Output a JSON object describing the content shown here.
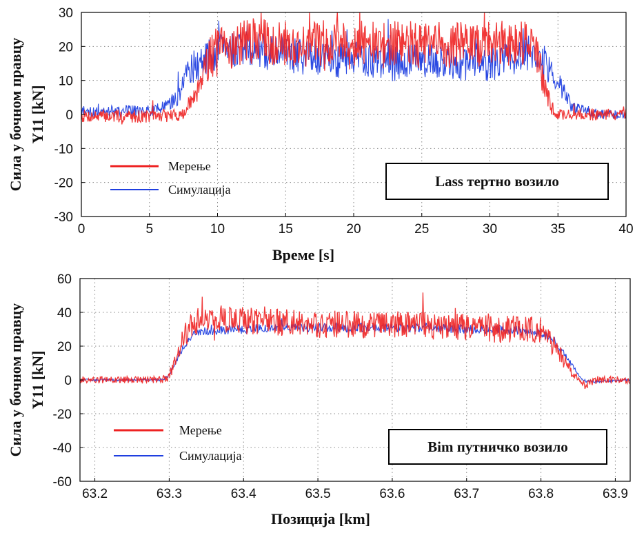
{
  "chart_data": [
    {
      "type": "line",
      "xlabel": "Време [s]",
      "ylabel_line1": "Сила у бочном правцу",
      "ylabel_line2": "Y11 [kN]",
      "xlim": [
        0,
        40
      ],
      "ylim": [
        -30,
        30
      ],
      "xticks": [
        0,
        5,
        10,
        15,
        20,
        25,
        30,
        35,
        40
      ],
      "xtick_labels": [
        "0",
        "5",
        "10",
        "15",
        "20",
        "25",
        "30",
        "35",
        "40"
      ],
      "yticks": [
        -30,
        -20,
        -10,
        0,
        10,
        20,
        30
      ],
      "ytick_labels": [
        "-30",
        "-20",
        "-10",
        "0",
        "10",
        "20",
        "30"
      ],
      "grid": true,
      "legend": [
        "Мерење",
        "Симулација"
      ],
      "annotation": "Lass тертно возило",
      "series": [
        {
          "name": "Мерење",
          "color": "#ee2222",
          "x": [
            0,
            2,
            4,
            6,
            7.5,
            8,
            8.5,
            9,
            9.5,
            10,
            11,
            12,
            13,
            14,
            15,
            16,
            17,
            18,
            19,
            20,
            21,
            22,
            23,
            24,
            25,
            26,
            27,
            28,
            29,
            30,
            31,
            32,
            33,
            33.5,
            34,
            34.5,
            35,
            36,
            38,
            40
          ],
          "y": [
            -0.5,
            -0.5,
            -0.5,
            -0.5,
            0,
            3,
            8,
            14,
            17,
            19,
            20,
            21,
            22,
            21,
            21,
            20,
            21,
            21,
            22,
            21,
            21,
            20,
            21,
            21,
            20,
            21,
            20,
            21,
            20,
            21,
            21,
            21,
            22,
            17,
            8,
            2,
            0,
            0,
            0,
            0
          ],
          "noise": 5
        },
        {
          "name": "Симулација",
          "color": "#1f3fe0",
          "x": [
            0,
            1,
            2,
            3,
            4,
            5,
            6,
            6.5,
            7,
            7.5,
            8,
            9,
            10,
            11,
            12,
            13,
            14,
            15,
            16,
            17,
            18,
            19,
            20,
            21,
            22,
            23,
            24,
            25,
            26,
            27,
            28,
            29,
            30,
            31,
            32,
            33,
            33.5,
            34,
            35,
            36,
            38,
            40
          ],
          "y": [
            0,
            1,
            1,
            1,
            1,
            1,
            2,
            3,
            5,
            9,
            13,
            16,
            18,
            19,
            19,
            19,
            18,
            18,
            17,
            17,
            17,
            16,
            16,
            16,
            16,
            15,
            16,
            16,
            16,
            16,
            15,
            16,
            15,
            16,
            17,
            18,
            17,
            15,
            10,
            2,
            0,
            0
          ],
          "noise": 4
        }
      ]
    },
    {
      "type": "line",
      "xlabel": "Позиција [km]",
      "ylabel_line1": "Сила у бочном правцу",
      "ylabel_line2": "Y11 [kN]",
      "xlim": [
        63.18,
        63.92
      ],
      "ylim": [
        -60,
        60
      ],
      "xticks": [
        63.2,
        63.3,
        63.4,
        63.5,
        63.6,
        63.7,
        63.8,
        63.9
      ],
      "xtick_labels": [
        "63.2",
        "63.3",
        "63.4",
        "63.5",
        "63.6",
        "63.7",
        "63.8",
        "63.9"
      ],
      "yticks": [
        -60,
        -40,
        -20,
        0,
        20,
        40,
        60
      ],
      "ytick_labels": [
        "-60",
        "-40",
        "-20",
        "0",
        "20",
        "40",
        "60"
      ],
      "grid": true,
      "legend": [
        "Мерење",
        "Симулација"
      ],
      "annotation": "Bim путничко возило",
      "series": [
        {
          "name": "Мерење",
          "color": "#ee2222",
          "x": [
            63.18,
            63.22,
            63.26,
            63.29,
            63.3,
            63.31,
            63.32,
            63.33,
            63.34,
            63.37,
            63.4,
            63.45,
            63.5,
            63.55,
            63.6,
            63.65,
            63.7,
            63.75,
            63.79,
            63.81,
            63.83,
            63.845,
            63.86,
            63.88,
            63.92
          ],
          "y": [
            0,
            0,
            0,
            0,
            2,
            14,
            26,
            32,
            35,
            36,
            35,
            34,
            33,
            33,
            32,
            32,
            31,
            30,
            30,
            24,
            12,
            2,
            -3,
            0,
            0
          ],
          "noise": 6
        },
        {
          "name": "Симулација",
          "color": "#1f3fe0",
          "x": [
            63.18,
            63.22,
            63.26,
            63.29,
            63.3,
            63.31,
            63.32,
            63.33,
            63.35,
            63.4,
            63.45,
            63.5,
            63.55,
            63.6,
            63.65,
            63.7,
            63.75,
            63.8,
            63.82,
            63.84,
            63.855,
            63.87,
            63.92
          ],
          "y": [
            0,
            0,
            0,
            0,
            3,
            12,
            20,
            26,
            29,
            30,
            31,
            31,
            31,
            31,
            31,
            30,
            30,
            28,
            22,
            10,
            0,
            -1,
            0
          ],
          "noise": 2
        }
      ]
    }
  ]
}
